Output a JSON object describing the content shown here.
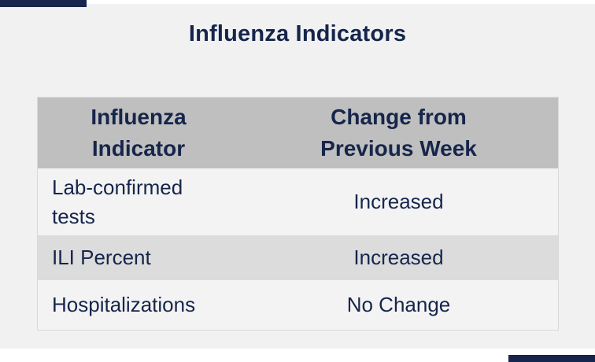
{
  "page": {
    "title": "Influenza Indicators"
  },
  "colors": {
    "accent_navy": "#16254b",
    "panel_background": "#f1f1f2",
    "header_gray": "#bfbfbf",
    "row_light_gray": "#f3f3f3",
    "row_dark_gray": "#dcdcdc",
    "table_border": "#d9d9d9"
  },
  "table": {
    "headers": [
      "Influenza Indicator",
      "Change from Previous Week"
    ],
    "rows": [
      {
        "indicator": "Lab-confirmed tests",
        "change": "Increased"
      },
      {
        "indicator": "ILI Percent",
        "change": "Increased"
      },
      {
        "indicator": "Hospitalizations",
        "change": "No Change"
      }
    ]
  }
}
